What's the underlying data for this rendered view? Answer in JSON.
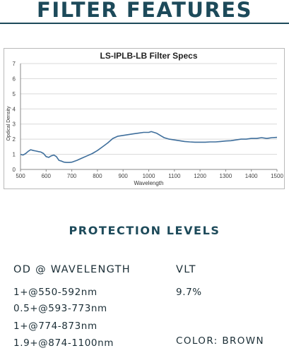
{
  "header": {
    "title": "FILTER FEATURES"
  },
  "chart_data": {
    "type": "line",
    "title": "LS-IPLB-LB Filter Specs",
    "xlabel": "Wavelength",
    "ylabel": "Opdical Density",
    "xlim": [
      500,
      1500
    ],
    "ylim": [
      0,
      7
    ],
    "xticks": [
      500,
      600,
      700,
      800,
      900,
      1000,
      1100,
      1200,
      1300,
      1400,
      1500
    ],
    "yticks": [
      0,
      1,
      2,
      3,
      4,
      5,
      6,
      7
    ],
    "grid": true,
    "line_color": "#3f6f9c",
    "series": [
      {
        "x": [
          500,
          510,
          520,
          530,
          540,
          550,
          560,
          570,
          580,
          590,
          600,
          610,
          620,
          630,
          640,
          650,
          660,
          670,
          680,
          690,
          700,
          720,
          740,
          760,
          780,
          800,
          820,
          840,
          860,
          880,
          900,
          920,
          940,
          960,
          980,
          1000,
          1010,
          1020,
          1030,
          1040,
          1050,
          1060,
          1080,
          1100,
          1120,
          1140,
          1160,
          1180,
          1200,
          1220,
          1240,
          1260,
          1280,
          1300,
          1320,
          1340,
          1360,
          1380,
          1400,
          1420,
          1440,
          1460,
          1480,
          1500
        ],
        "y": [
          1.0,
          0.95,
          1.05,
          1.2,
          1.3,
          1.25,
          1.22,
          1.18,
          1.15,
          1.05,
          0.85,
          0.8,
          0.9,
          0.95,
          0.85,
          0.6,
          0.55,
          0.48,
          0.46,
          0.46,
          0.48,
          0.6,
          0.75,
          0.9,
          1.05,
          1.25,
          1.5,
          1.75,
          2.05,
          2.2,
          2.25,
          2.3,
          2.35,
          2.4,
          2.45,
          2.45,
          2.5,
          2.45,
          2.4,
          2.3,
          2.2,
          2.1,
          2.0,
          1.95,
          1.9,
          1.85,
          1.82,
          1.8,
          1.8,
          1.8,
          1.82,
          1.82,
          1.85,
          1.88,
          1.9,
          1.95,
          2.0,
          2.0,
          2.05,
          2.05,
          2.1,
          2.05,
          2.1,
          2.12
        ]
      }
    ]
  },
  "protection": {
    "title": "PROTECTION LEVELS",
    "od_header": "OD @ WAVELENGTH",
    "vlt_header": "VLT",
    "rows": [
      "1+@550-592nm",
      "0.5+@593-773nm",
      "1+@774-873nm",
      "1.9+@874-1100nm"
    ],
    "vlt_value": "9.7%",
    "color": "COLOR: BROWN"
  }
}
